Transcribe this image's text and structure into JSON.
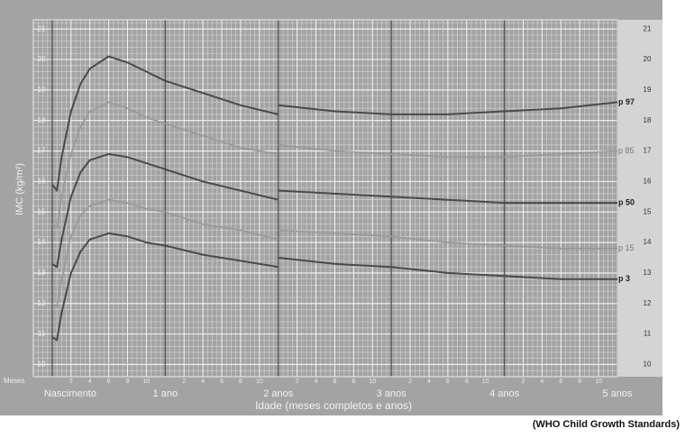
{
  "chart_data": {
    "type": "line",
    "x_label": "Idade (meses completos e anos)",
    "y_label": "IMC (kg/m²)",
    "x_unit_label": "Meses",
    "source": "(WHO Child Growth Standards)",
    "x": [
      0,
      0.5,
      1,
      2,
      3,
      4,
      6,
      8,
      10,
      12,
      16,
      20,
      24,
      24,
      24,
      30,
      36,
      42,
      48,
      54,
      60
    ],
    "series": [
      {
        "name": "p 97",
        "color": "#4a4a4a",
        "bold": true,
        "values": [
          15.9,
          15.7,
          16.8,
          18.3,
          19.2,
          19.7,
          20.1,
          19.9,
          19.6,
          19.3,
          18.9,
          18.5,
          18.2,
          null,
          18.5,
          18.3,
          18.2,
          18.2,
          18.3,
          18.4,
          18.6
        ]
      },
      {
        "name": "p 85",
        "color": "#9a9a9a",
        "bold": false,
        "values": [
          14.6,
          14.5,
          15.5,
          16.9,
          17.8,
          18.3,
          18.6,
          18.4,
          18.1,
          17.9,
          17.5,
          17.1,
          16.9,
          null,
          17.2,
          17.0,
          16.9,
          16.8,
          16.8,
          16.9,
          17.0
        ]
      },
      {
        "name": "p 50",
        "color": "#4a4a4a",
        "bold": true,
        "values": [
          13.3,
          13.2,
          14.1,
          15.5,
          16.3,
          16.7,
          16.9,
          16.8,
          16.6,
          16.4,
          16.0,
          15.7,
          15.4,
          null,
          15.7,
          15.6,
          15.5,
          15.4,
          15.3,
          15.3,
          15.3
        ]
      },
      {
        "name": "p 15",
        "color": "#9a9a9a",
        "bold": false,
        "values": [
          12.0,
          11.9,
          12.8,
          14.2,
          14.9,
          15.2,
          15.4,
          15.3,
          15.1,
          15.0,
          14.6,
          14.4,
          14.1,
          null,
          14.4,
          14.3,
          14.2,
          14.0,
          13.9,
          13.8,
          13.8
        ]
      },
      {
        "name": "p 3",
        "color": "#4a4a4a",
        "bold": true,
        "values": [
          10.9,
          10.8,
          11.7,
          13.0,
          13.7,
          14.1,
          14.3,
          14.2,
          14.0,
          13.9,
          13.6,
          13.4,
          13.2,
          null,
          13.5,
          13.3,
          13.2,
          13.0,
          12.9,
          12.8,
          12.8
        ]
      }
    ],
    "xlim": [
      -2,
      60
    ],
    "ylim": [
      9.6,
      21.3
    ],
    "yticks": [
      10,
      11,
      12,
      13,
      14,
      15,
      16,
      17,
      18,
      19,
      20,
      21
    ],
    "xticks": [
      2,
      4,
      6,
      8,
      10,
      {
        "value": 14,
        "label": "2"
      },
      {
        "value": 16,
        "label": "4"
      },
      {
        "value": 18,
        "label": "6"
      },
      {
        "value": 20,
        "label": "8"
      },
      {
        "value": 22,
        "label": "10"
      },
      {
        "value": 26,
        "label": "2"
      },
      {
        "value": 28,
        "label": "4"
      },
      {
        "value": 30,
        "label": "6"
      },
      {
        "value": 32,
        "label": "8"
      },
      {
        "value": 34,
        "label": "10"
      },
      {
        "value": 38,
        "label": "2"
      },
      {
        "value": 40,
        "label": "4"
      },
      {
        "value": 42,
        "label": "6"
      },
      {
        "value": 44,
        "label": "8"
      },
      {
        "value": 46,
        "label": "10"
      },
      {
        "value": 50,
        "label": "2"
      },
      {
        "value": 52,
        "label": "4"
      },
      {
        "value": 54,
        "label": "6"
      },
      {
        "value": 56,
        "label": "8"
      },
      {
        "value": 58,
        "label": "10"
      }
    ],
    "xticks_major": [
      {
        "value": 0,
        "label": "Nascimento"
      },
      {
        "value": 12,
        "label": "1 ano"
      },
      {
        "value": 24,
        "label": "2 anos"
      },
      {
        "value": 36,
        "label": "3 anos"
      },
      {
        "value": 48,
        "label": "4 anos"
      },
      {
        "value": 60,
        "label": "5 anos"
      }
    ],
    "grid": true,
    "minor_grid": {
      "x_step": 0.5,
      "y_step": 0.2
    },
    "background": "#a3a3a3"
  }
}
